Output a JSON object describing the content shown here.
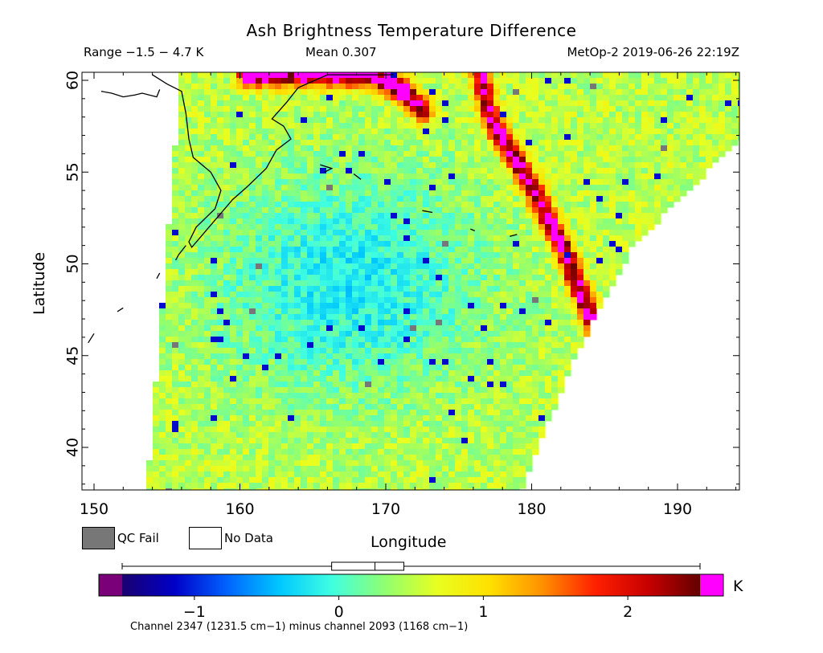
{
  "header": {
    "title": "Ash Brightness Temperature Difference",
    "range": "Range −1.5 − 4.7 K",
    "mean": "Mean 0.307",
    "satellite": "MetOp-2 2019-06-26 22:19Z"
  },
  "legend": {
    "qc_fail_label": "QC Fail",
    "no_data_label": "No Data",
    "qc_fail_color": "#777777",
    "no_data_color": "#ffffff"
  },
  "colorbar": {
    "unit": "K",
    "ticks": [
      -1,
      0,
      1,
      2
    ],
    "tick_labels": [
      "−1",
      "0",
      "1",
      "2"
    ],
    "range": [
      -1.5,
      2.5
    ],
    "under_color": "#7a007a",
    "over_color": "#ff00ff",
    "stops": [
      "#1a0070",
      "#0000c8",
      "#0064ff",
      "#00c8ff",
      "#40ffe0",
      "#90ff70",
      "#e8ff20",
      "#ffe000",
      "#ff9000",
      "#ff2000",
      "#c80000",
      "#640000"
    ],
    "stats_whisker": [
      -1.5,
      2.5
    ],
    "stats_box": [
      -0.05,
      0.45
    ],
    "stats_median": 0.25,
    "footnote": "Channel 2347 (1231.5 cm−1) minus channel 2093 (1168 cm−1)"
  },
  "chart_data": {
    "type": "heatmap",
    "title": "Ash Brightness Temperature Difference",
    "xlabel": "Longitude",
    "ylabel": "Latitude",
    "xlim": [
      149.5,
      194.5
    ],
    "ylim": [
      37.5,
      60.5
    ],
    "xticks": [
      150,
      160,
      170,
      180,
      190
    ],
    "yticks": [
      40,
      45,
      50,
      55,
      60
    ],
    "value_range_K": [
      -1.5,
      4.7
    ],
    "mean_K": 0.307,
    "swath_edges": {
      "west": [
        [
          156.0,
          60.5
        ],
        [
          153.6,
          37.5
        ]
      ],
      "east": [
        [
          179.2,
          37.5
        ],
        [
          183.0,
          45.0
        ],
        [
          187.0,
          51.0
        ],
        [
          194.5,
          57.0
        ]
      ]
    },
    "background_value_K": 0.5,
    "central_minimum": {
      "lon": 167.5,
      "lat": 49.0,
      "value_K": -0.2
    },
    "ash_features": [
      {
        "name": "coast band",
        "points": [
          [
            160.5,
            60.3
          ],
          [
            165.0,
            60.3
          ],
          [
            169.0,
            60.3
          ],
          [
            171.0,
            59.5
          ],
          [
            172.5,
            58.4
          ]
        ],
        "value_K": 2.2
      },
      {
        "name": "arc band",
        "points": [
          [
            176.5,
            60.3
          ],
          [
            177.0,
            58.5
          ],
          [
            177.6,
            57.3
          ],
          [
            179.0,
            55.6
          ],
          [
            180.6,
            53.3
          ],
          [
            182.2,
            50.8
          ],
          [
            183.5,
            48.2
          ],
          [
            184.5,
            46.3
          ]
        ],
        "value_K": 2.0
      }
    ],
    "coastlines": [
      [
        [
          154.0,
          60.3
        ],
        [
          155.0,
          59.8
        ],
        [
          156.0,
          59.4
        ],
        [
          156.3,
          58.2
        ],
        [
          156.5,
          56.8
        ],
        [
          156.8,
          55.8
        ],
        [
          158.0,
          55.0
        ],
        [
          158.7,
          54.0
        ],
        [
          158.3,
          53.0
        ],
        [
          157.0,
          52.0
        ],
        [
          156.5,
          51.2
        ],
        [
          156.7,
          50.9
        ],
        [
          159.5,
          53.5
        ],
        [
          160.5,
          54.2
        ],
        [
          161.8,
          55.2
        ],
        [
          162.5,
          56.2
        ],
        [
          163.5,
          56.8
        ],
        [
          163.0,
          57.5
        ],
        [
          162.2,
          57.9
        ],
        [
          163.2,
          58.8
        ],
        [
          164.0,
          59.6
        ],
        [
          166.0,
          60.3
        ],
        [
          169.0,
          60.3
        ],
        [
          170.5,
          60.3
        ]
      ],
      [
        [
          150.5,
          59.4
        ],
        [
          151.2,
          59.3
        ],
        [
          152.0,
          59.1
        ],
        [
          152.8,
          59.2
        ],
        [
          153.3,
          59.3
        ],
        [
          154.3,
          59.1
        ],
        [
          154.5,
          59.5
        ]
      ],
      [
        [
          165.5,
          55.4
        ],
        [
          166.3,
          55.2
        ],
        [
          165.8,
          55.0
        ]
      ],
      [
        [
          167.8,
          54.9
        ],
        [
          168.3,
          54.6
        ]
      ],
      [
        [
          172.5,
          52.9
        ],
        [
          173.2,
          52.8
        ]
      ],
      [
        [
          175.8,
          51.9
        ],
        [
          176.1,
          51.8
        ]
      ],
      [
        [
          178.5,
          51.5
        ],
        [
          179.0,
          51.6
        ]
      ],
      [
        [
          156.3,
          51.0
        ],
        [
          155.8,
          50.5
        ],
        [
          155.6,
          50.2
        ]
      ],
      [
        [
          154.5,
          49.5
        ],
        [
          154.3,
          49.2
        ]
      ],
      [
        [
          152.0,
          47.6
        ],
        [
          151.6,
          47.4
        ]
      ],
      [
        [
          150.0,
          46.2
        ],
        [
          149.6,
          45.7
        ]
      ]
    ]
  }
}
